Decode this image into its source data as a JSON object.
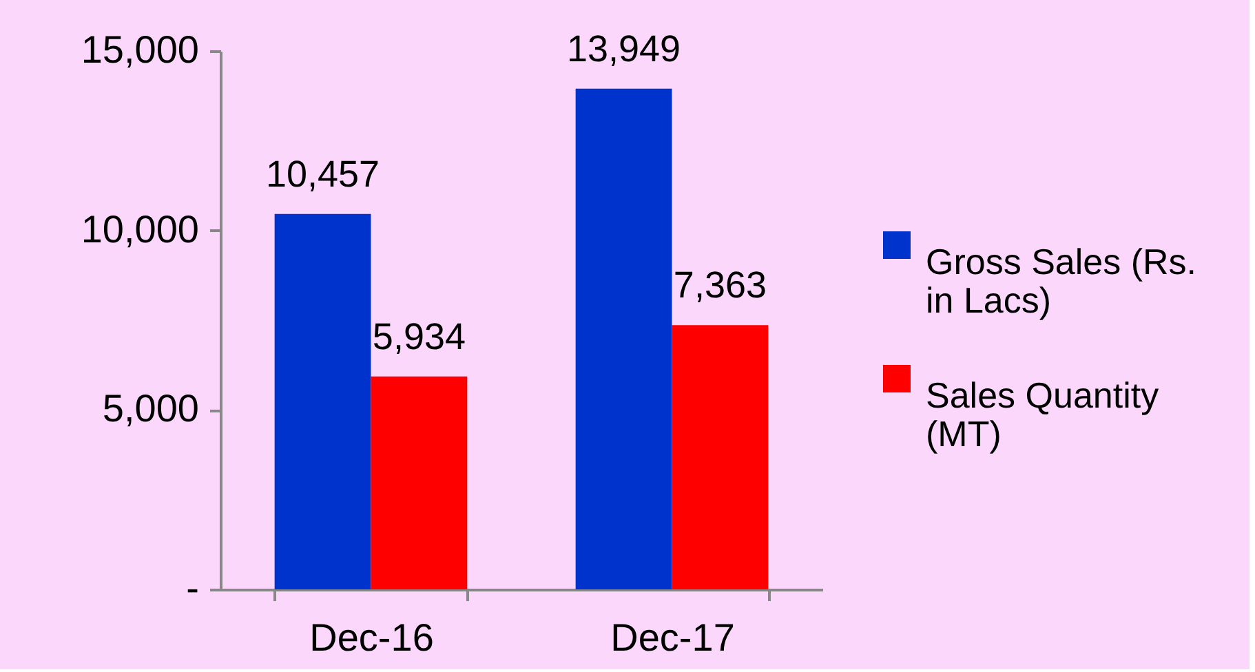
{
  "chart_data": {
    "type": "bar",
    "categories": [
      "Dec-16",
      "Dec-17"
    ],
    "series": [
      {
        "name": "Gross Sales (Rs. in Lacs)",
        "color": "#0033cc",
        "values": [
          10457,
          13949
        ],
        "value_labels": [
          "10,457",
          "13,949"
        ]
      },
      {
        "name": "Sales Quantity (MT)",
        "color": "#ff0000",
        "values": [
          5934,
          7363
        ],
        "value_labels": [
          "5,934",
          "7,363"
        ]
      }
    ],
    "ylim": [
      0,
      15000
    ],
    "yticks": [
      {
        "value": 0,
        "label": "-"
      },
      {
        "value": 5000,
        "label": "5,000"
      },
      {
        "value": 10000,
        "label": "10,000"
      },
      {
        "value": 15000,
        "label": "15,000"
      }
    ],
    "grid": false,
    "legend": "right"
  }
}
